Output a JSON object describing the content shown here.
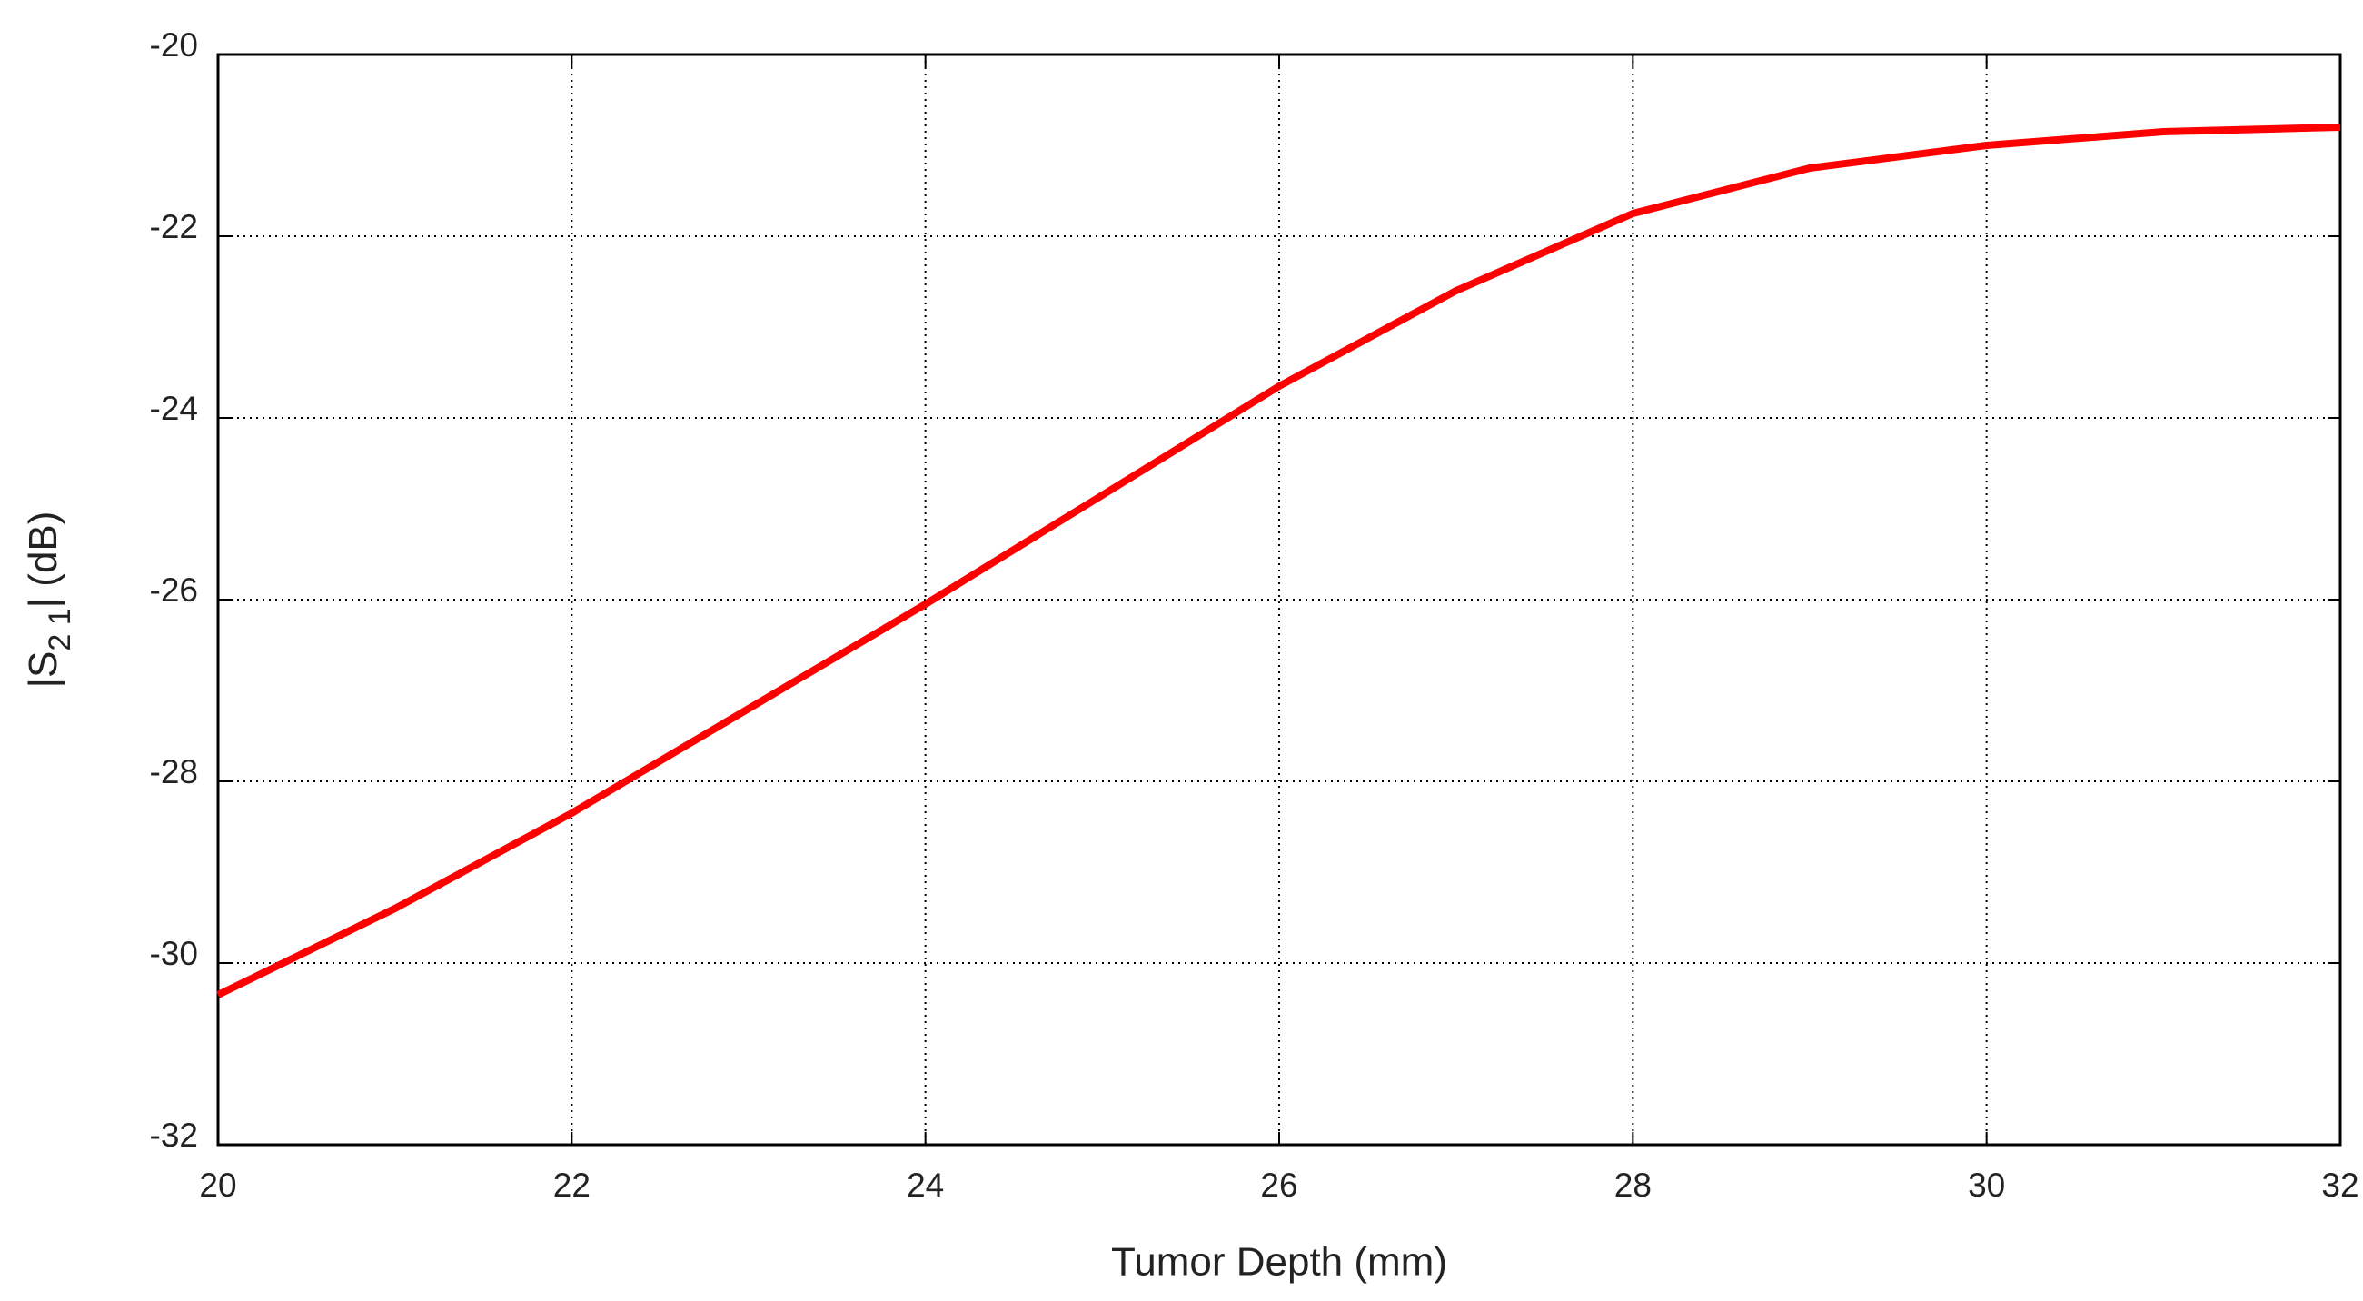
{
  "chart_data": {
    "type": "line",
    "xlabel": "Tumor Depth (mm)",
    "ylabel": {
      "prefix": "|S",
      "subscript": "2 1",
      "suffix": "| (dB)"
    },
    "x": [
      20,
      21,
      22,
      23,
      24,
      25,
      26,
      27,
      28,
      29,
      30,
      31,
      32
    ],
    "series": [
      {
        "color": "#ff0000",
        "values": [
          -30.35,
          -29.4,
          -28.35,
          -27.2,
          -26.05,
          -24.85,
          -23.65,
          -22.6,
          -21.75,
          -21.25,
          -21.0,
          -20.85,
          -20.8
        ]
      }
    ],
    "xlim": [
      20,
      32
    ],
    "xticks": [
      20,
      22,
      24,
      26,
      28,
      30,
      32
    ],
    "ylim": [
      -32,
      -20
    ],
    "yticks": [
      -32,
      -30,
      -28,
      -26,
      -24,
      -22,
      -20
    ],
    "grid": true
  }
}
